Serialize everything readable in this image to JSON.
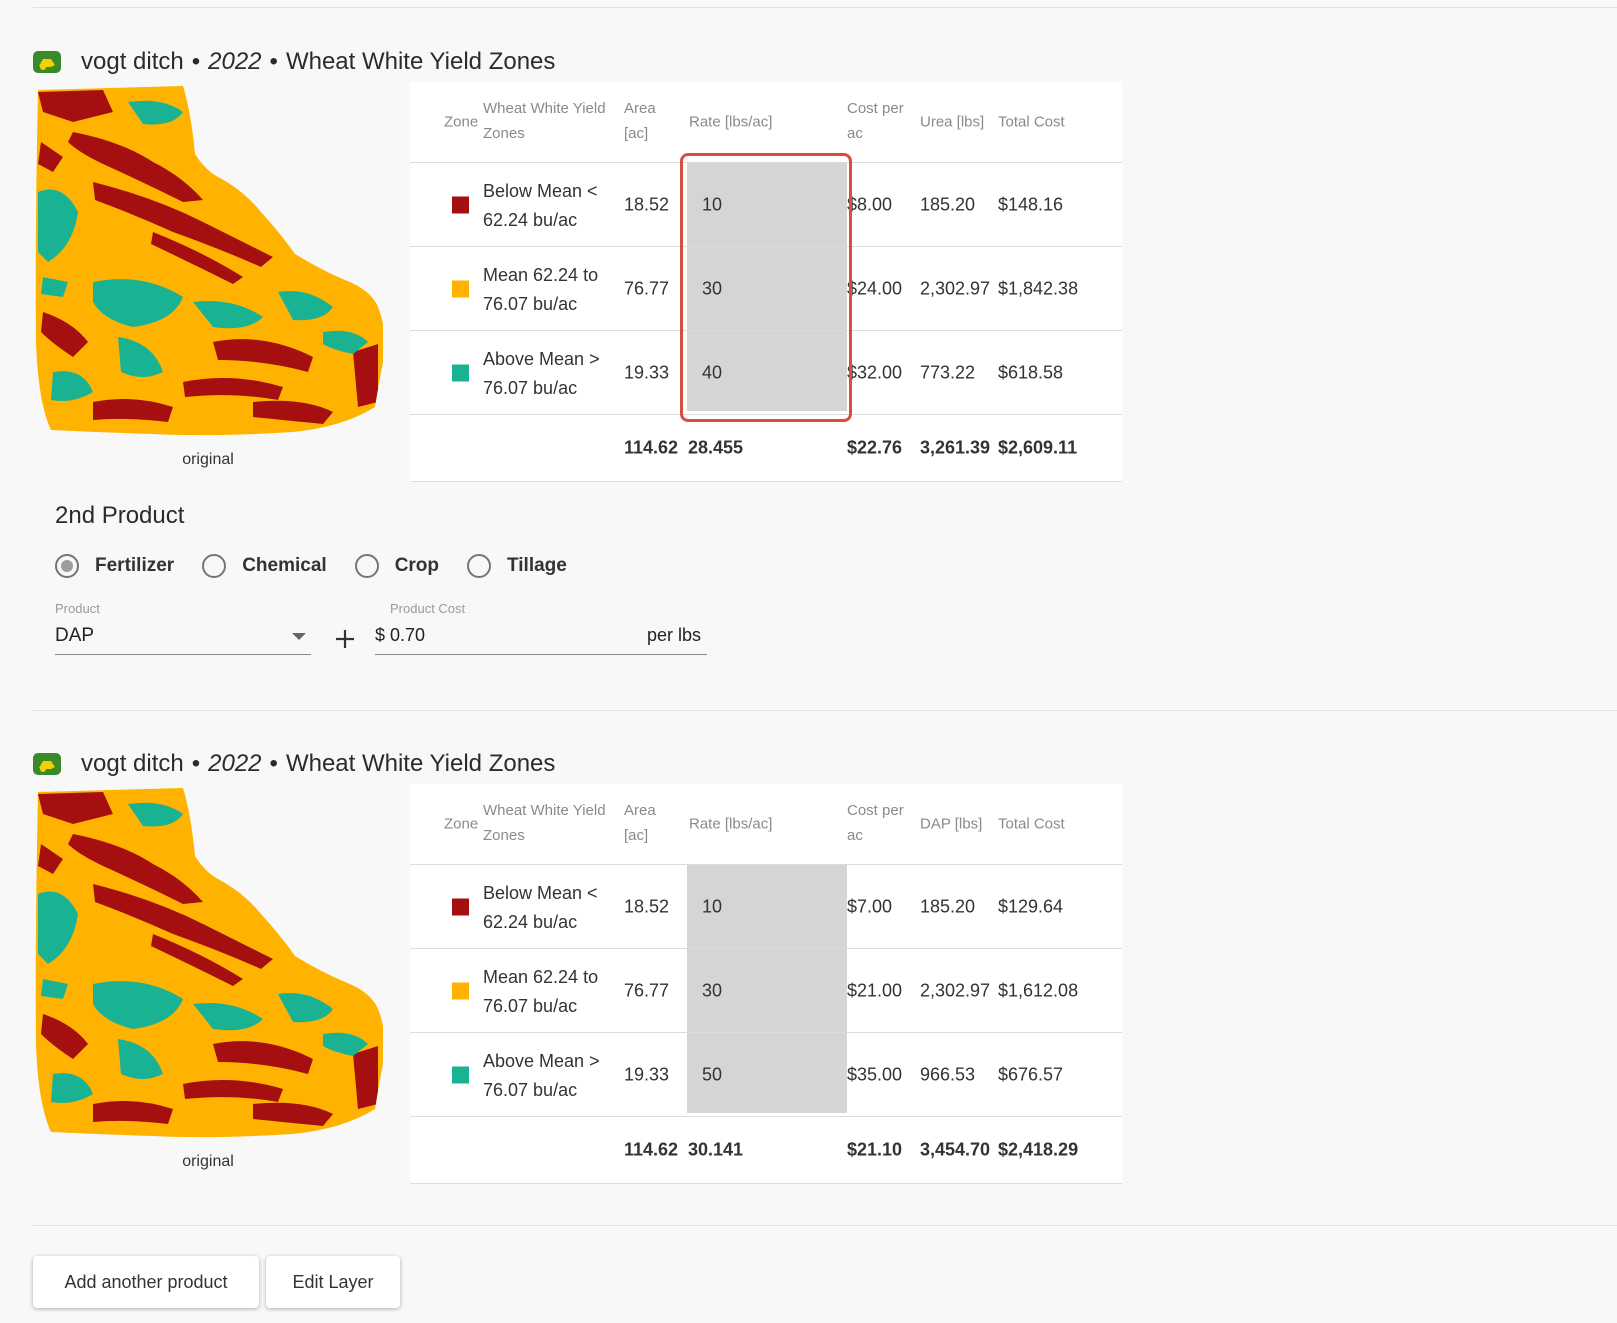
{
  "sections": [
    {
      "title": {
        "field": "vogt ditch",
        "year": "2022",
        "layer": "Wheat White Yield Zones"
      },
      "map_caption": "original",
      "table": {
        "headers": {
          "zone": "Zone",
          "zones_col_1": "Wheat White Yield",
          "zones_col_2": "Zones",
          "area_1": "Area",
          "area_2": "[ac]",
          "rate": "Rate [lbs/ac]",
          "cost_1": "Cost per",
          "cost_2": "ac",
          "qty": "Urea [lbs]",
          "total": "Total Cost"
        },
        "rows": [
          {
            "zone_1": "Below Mean <",
            "zone_2": "62.24 bu/ac",
            "color": "#a50f0f",
            "area": "18.52",
            "rate": "10",
            "cost": "$8.00",
            "qty": "185.20",
            "total": "$148.16"
          },
          {
            "zone_1": "Mean 62.24 to",
            "zone_2": "76.07 bu/ac",
            "color": "#ffb300",
            "area": "76.77",
            "rate": "30",
            "cost": "$24.00",
            "qty": "2,302.97",
            "total": "$1,842.38"
          },
          {
            "zone_1": "Above Mean >",
            "zone_2": "76.07 bu/ac",
            "color": "#19b394",
            "area": "19.33",
            "rate": "40",
            "cost": "$32.00",
            "qty": "773.22",
            "total": "$618.58"
          }
        ],
        "totals": {
          "area": "114.62",
          "rate": "28.455",
          "cost": "$22.76",
          "qty": "3,261.39",
          "total": "$2,609.11"
        }
      }
    },
    {
      "title": {
        "field": "vogt ditch",
        "year": "2022",
        "layer": "Wheat White Yield Zones"
      },
      "map_caption": "original",
      "table": {
        "headers": {
          "zone": "Zone",
          "zones_col_1": "Wheat White Yield",
          "zones_col_2": "Zones",
          "area_1": "Area",
          "area_2": "[ac]",
          "rate": "Rate [lbs/ac]",
          "cost_1": "Cost per",
          "cost_2": "ac",
          "qty": "DAP [lbs]",
          "total": "Total Cost"
        },
        "rows": [
          {
            "zone_1": "Below Mean <",
            "zone_2": "62.24 bu/ac",
            "color": "#a50f0f",
            "area": "18.52",
            "rate": "10",
            "cost": "$7.00",
            "qty": "185.20",
            "total": "$129.64"
          },
          {
            "zone_1": "Mean 62.24 to",
            "zone_2": "76.07 bu/ac",
            "color": "#ffb300",
            "area": "76.77",
            "rate": "30",
            "cost": "$21.00",
            "qty": "2,302.97",
            "total": "$1,612.08"
          },
          {
            "zone_1": "Above Mean >",
            "zone_2": "76.07 bu/ac",
            "color": "#19b394",
            "area": "19.33",
            "rate": "50",
            "cost": "$35.00",
            "qty": "966.53",
            "total": "$676.57"
          }
        ],
        "totals": {
          "area": "114.62",
          "rate": "30.141",
          "cost": "$21.10",
          "qty": "3,454.70",
          "total": "$2,418.29"
        }
      }
    }
  ],
  "second_product": {
    "title": "2nd Product",
    "types": [
      {
        "label": "Fertilizer",
        "selected": true
      },
      {
        "label": "Chemical",
        "selected": false
      },
      {
        "label": "Crop",
        "selected": false
      },
      {
        "label": "Tillage",
        "selected": false
      }
    ],
    "product_label": "Product",
    "product_value": "DAP",
    "cost_label": "Product Cost",
    "cost_prefix": "$",
    "cost_value": "0.70",
    "cost_unit": "per lbs"
  },
  "buttons": {
    "add_product": "Add another product",
    "edit_layer": "Edit Layer"
  },
  "icons": {
    "brand": "tractor-logo-icon",
    "dropdown": "dropdown-arrow-icon",
    "add": "plus-icon"
  }
}
